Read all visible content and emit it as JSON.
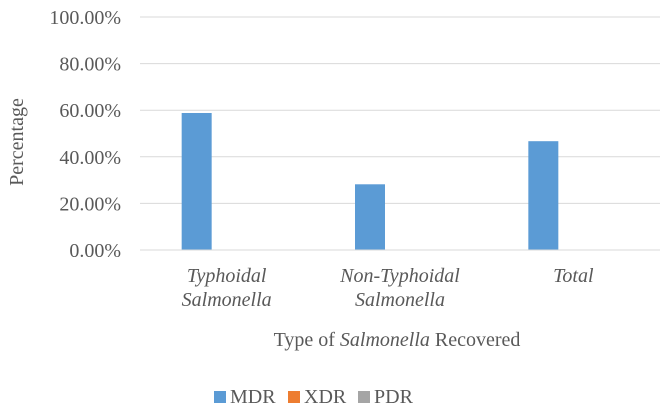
{
  "chart_data": {
    "type": "bar",
    "categories": [
      [
        "Typhoidal",
        "Salmonella"
      ],
      [
        "Non-Typhoidal",
        "Salmonella"
      ],
      [
        "Total"
      ]
    ],
    "series": [
      {
        "name": "MDR",
        "color": "#5B9BD5",
        "values": [
          58.8,
          28.2,
          46.7
        ]
      },
      {
        "name": "XDR",
        "color": "#ED7D31",
        "values": [
          0,
          0,
          0
        ]
      },
      {
        "name": "PDR",
        "color": "#A5A5A5",
        "values": [
          0,
          0,
          0
        ]
      }
    ],
    "ylim": [
      0,
      100
    ],
    "yticks": [
      0,
      20,
      40,
      60,
      80,
      100
    ],
    "ytick_labels": [
      "0.00%",
      "20.00%",
      "40.00%",
      "60.00%",
      "80.00%",
      "100.00%"
    ],
    "ylabel": "Percentage",
    "xlabel": {
      "prefix": "Type of ",
      "italic": "Salmonella",
      "suffix": " Recovered"
    },
    "grid": true,
    "legend": "bottom"
  }
}
